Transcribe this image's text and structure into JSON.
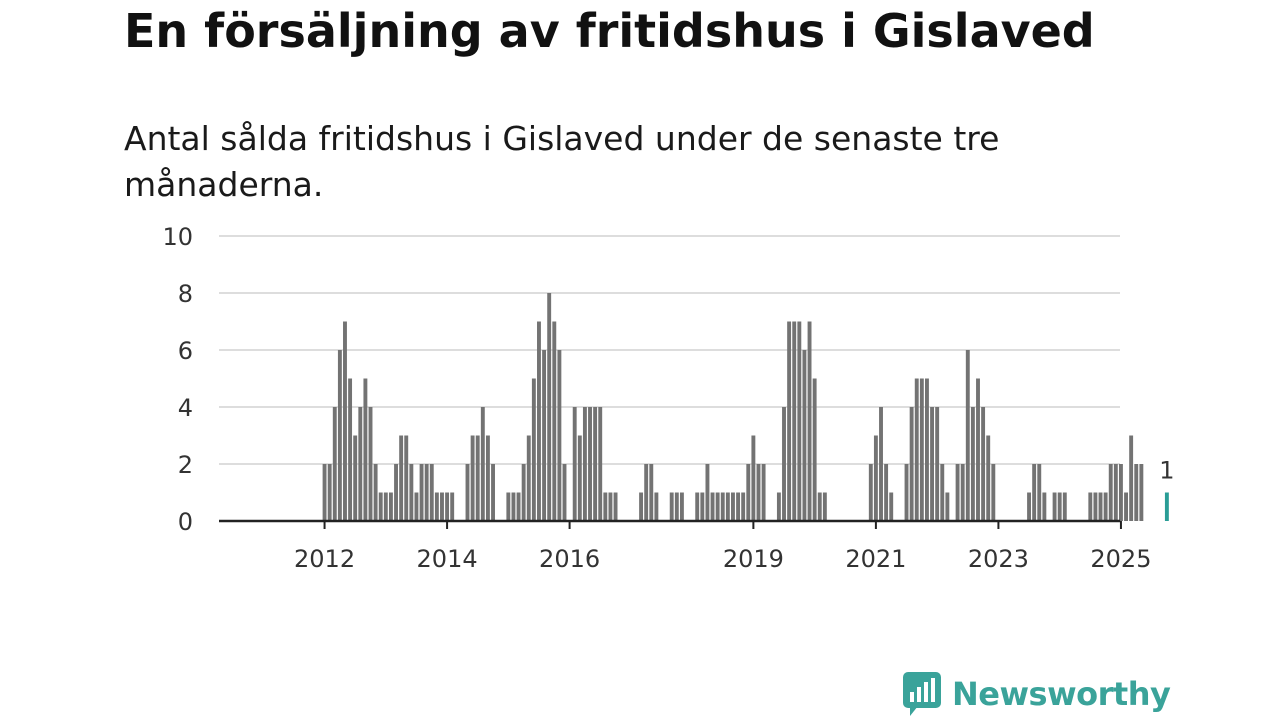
{
  "colors": {
    "bar": "#737373",
    "highlight": "#2a9d96",
    "grid": "#dddddd",
    "axis": "#222222",
    "brand": "#3aa39a"
  },
  "brand": {
    "name": "Newsworthy",
    "logo_icon": "newsworthy-chart-icon"
  },
  "chart_data": {
    "type": "bar",
    "title": "En försäljning av fritidshus i Gislaved",
    "subtitle": "Antal sålda fritidshus i Gislaved under de senaste tre månaderna.",
    "xlabel": "",
    "ylabel": "",
    "ylim": [
      0,
      10
    ],
    "yticks": [
      0,
      2,
      4,
      6,
      8,
      10
    ],
    "grid": true,
    "x_start": "2011-01",
    "xticks": [
      {
        "label": "2012",
        "index": 12
      },
      {
        "label": "2014",
        "index": 36
      },
      {
        "label": "2016",
        "index": 60
      },
      {
        "label": "2019",
        "index": 96
      },
      {
        "label": "2021",
        "index": 120
      },
      {
        "label": "2023",
        "index": 144
      },
      {
        "label": "2025",
        "index": 168
      }
    ],
    "values": [
      0,
      0,
      0,
      0,
      0,
      0,
      0,
      0,
      0,
      0,
      0,
      0,
      2,
      2,
      4,
      6,
      7,
      5,
      3,
      4,
      5,
      4,
      2,
      1,
      1,
      1,
      2,
      3,
      3,
      2,
      1,
      2,
      2,
      2,
      1,
      1,
      1,
      1,
      0,
      0,
      2,
      3,
      3,
      4,
      3,
      2,
      0,
      0,
      1,
      1,
      1,
      2,
      3,
      5,
      7,
      6,
      8,
      7,
      6,
      2,
      0,
      4,
      3,
      4,
      4,
      4,
      4,
      1,
      1,
      1,
      0,
      0,
      0,
      0,
      1,
      2,
      2,
      1,
      0,
      0,
      1,
      1,
      1,
      0,
      0,
      1,
      1,
      2,
      1,
      1,
      1,
      1,
      1,
      1,
      1,
      2,
      3,
      2,
      2,
      0,
      0,
      1,
      4,
      7,
      7,
      7,
      6,
      7,
      5,
      1,
      1,
      0,
      0,
      0,
      0,
      0,
      0,
      0,
      0,
      2,
      3,
      4,
      2,
      1,
      0,
      0,
      2,
      4,
      5,
      5,
      5,
      4,
      4,
      2,
      1,
      0,
      2,
      2,
      6,
      4,
      5,
      4,
      3,
      2,
      0,
      0,
      0,
      0,
      0,
      0,
      1,
      2,
      2,
      1,
      0,
      1,
      1,
      1,
      0,
      0,
      0,
      0,
      1,
      1,
      1,
      1,
      2,
      2,
      2,
      1,
      3,
      2,
      2,
      0,
      0,
      0,
      0,
      1
    ],
    "highlight_index": 177,
    "annotations": [
      {
        "index": 177,
        "text": "1"
      }
    ]
  }
}
